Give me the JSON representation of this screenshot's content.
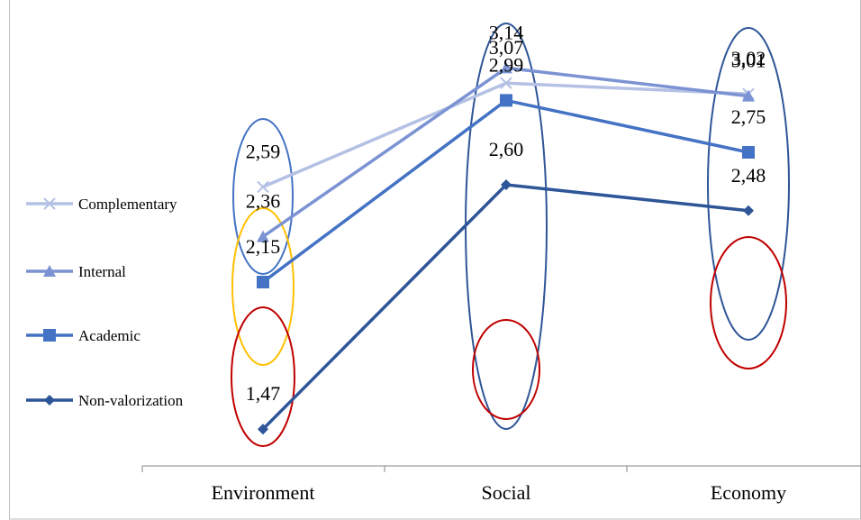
{
  "chart_data": {
    "type": "line",
    "title": "",
    "xlabel": "",
    "ylabel": "",
    "categories": [
      "Environment",
      "Social",
      "Economy"
    ],
    "ylim": [
      1.3,
      3.3
    ],
    "grid": false,
    "legend_position": "left",
    "series": [
      {
        "name": "Complementary",
        "values": [
          2.59,
          3.07,
          3.02
        ],
        "labels": [
          "2,59",
          "3,07",
          "3,02"
        ],
        "color": "#b4c0e4",
        "marker": "x"
      },
      {
        "name": "Internal",
        "values": [
          2.36,
          3.14,
          3.01
        ],
        "labels": [
          "2,36",
          "3,14",
          "3,01"
        ],
        "color": "#7b93d3",
        "marker": "triangle"
      },
      {
        "name": "Academic",
        "values": [
          2.15,
          2.99,
          2.75
        ],
        "labels": [
          "2,15",
          "2,99",
          "2,75"
        ],
        "color": "#4472c4",
        "marker": "square"
      },
      {
        "name": "Non-valorization",
        "values": [
          1.47,
          2.6,
          2.48
        ],
        "labels": [
          "1,47",
          "2,60",
          "2,48"
        ],
        "color": "#2e5597",
        "marker": "diamond"
      }
    ],
    "highlight_ellipse_colors": [
      "#4472c4",
      "#ffc000",
      "#c00000",
      "#2f5597",
      "#c00000",
      "#2f5597",
      "#c00000"
    ]
  }
}
